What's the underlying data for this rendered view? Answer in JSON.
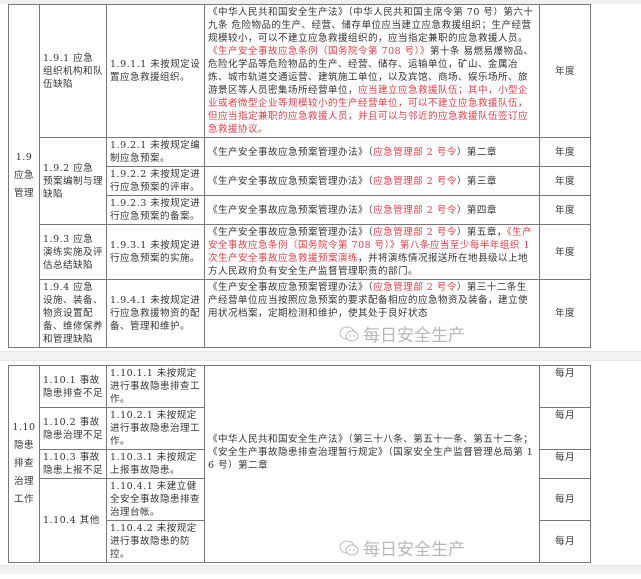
{
  "table1": {
    "category": "1.9 应急管理",
    "rows": [
      {
        "sub": "1.9.1 应急组织机构和队伍缺陷",
        "item": "1.9.1.1 未按规定设置应急救援组织。",
        "basis": [
          {
            "t": "《中华人民共和国安全生产法》（中华人民共和国主席令第 70 号）第六十九条 危险物品的生产、经营、储存单位应当建立应急救援组织；生产经营规模较小，可以不建立应急救援组织的，应当指定兼职的应急救援人员。",
            "red": false
          },
          {
            "t": "《生产安全事故应急条例（国务院令第 708 号）》",
            "red": true
          },
          {
            "t": "第十条 易燃易爆物品、危险化学品等危险物品的生产、经营、储存、运输单位，矿山、金属冶炼、城市轨道交通运营、建筑施工单位，以及宾馆、商场、娱乐场所、旅游景区等人员密集场所经营单位，",
            "red": false
          },
          {
            "t": "应当建立应急救援队伍；其中，小型企业或者微型企业等规模较小的生产经营单位，可以不建立应急救援队伍，但应当指定兼职的应急救援人员，并且可以与邻近的应急救援队伍签订应急救援协议。",
            "red": true
          }
        ],
        "freq": "年度"
      },
      {
        "sub": "1.9.2 应急预案编制与理缺陷",
        "item": "1.9.2.1 未按规定编制应急预案。",
        "basis": [
          {
            "t": "《生产安全事故应急预案管理办法》（",
            "red": false
          },
          {
            "t": "应急管理部 2 号令",
            "red": true
          },
          {
            "t": "）第二章",
            "red": false
          }
        ],
        "freq": "年度"
      },
      {
        "item": "1.9.2.2 未按规定进行应急预案的评审。",
        "basis": [
          {
            "t": "《生产安全事故应急预案管理办法》（",
            "red": false
          },
          {
            "t": "应急管理部 2 号令",
            "red": true
          },
          {
            "t": "）第三章",
            "red": false
          }
        ],
        "freq": "年度"
      },
      {
        "item": "1.9.2.3 未按规定进行应急预案的备案。",
        "basis": [
          {
            "t": "《生产安全事故应急预案管理办法》（",
            "red": false
          },
          {
            "t": "应急管理部 2 号令",
            "red": true
          },
          {
            "t": "）第四章",
            "red": false
          }
        ],
        "freq": "年度"
      },
      {
        "sub": "1.9.3 应急演练实施及评估总结缺陷",
        "item": "1.9.3.1 未按规定进行应急预案的实施。",
        "basis": [
          {
            "t": "《生产安全事故应急预案管理办法》（",
            "red": false
          },
          {
            "t": "应急管理部 2 号令",
            "red": true
          },
          {
            "t": "）第五章，",
            "red": false
          },
          {
            "t": "《生产安全事故应急条例（国务院令第 708 号）》第八条应当至少每半年组织 1 次生产安全事故应急救援预案演练",
            "red": true
          },
          {
            "t": "，并将演练情况报送所在地县级以上地方人民政府负有安全生产监督管理职责的部门。",
            "red": false
          }
        ],
        "freq": "年度"
      },
      {
        "sub": "1.9.4 应急设施、装备、物资设置配备、维修保养和管理缺陷",
        "item": "1.9.4.1 未按规定进行应急救援物资的配备、管理和维护。",
        "basis": [
          {
            "t": "《生产安全事故应急预案管理办法》（",
            "red": false
          },
          {
            "t": "应急管理部 2 号令",
            "red": true
          },
          {
            "t": "）第三十二条生产经营单位应当按照应急预案的要求配备相应的应急物资及装备，建立使用状况档案，定期检测和维护，使其处于良好状态",
            "red": false
          }
        ],
        "freq": "年度"
      }
    ]
  },
  "table2": {
    "category": "1.10 隐患排查治理工作",
    "basis": "《中华人民共和国安全生产法》（第三十八条、第五十一条、第五十二条；《安全生产事故隐患排查治理暂行规定》（国家安全生产监督管理总局第 16 号）第二章",
    "rows": [
      {
        "sub": "1.10.1 事故隐患排查不足",
        "item": "1.10.1.1 未按规定进行事故隐患排查工作。",
        "freq": "每月"
      },
      {
        "sub": "1.10.2 事故隐患治理不足",
        "item": "1.10.2.1 未按规定进行事故隐患治理工作。",
        "freq": "每月"
      },
      {
        "sub": "1.10.3 事故隐患上报不足",
        "item": "1.10.3.1 未按规定上报事故隐患。",
        "freq": "每月"
      },
      {
        "sub": "1.10.4 其他",
        "item": "1.10.4.1 未建立健全安全事故隐患排查治理台帐。",
        "freq": "每月"
      },
      {
        "item": "1.10.4.2 未按规定进行事故隐患的防控。",
        "freq": "每月"
      }
    ]
  },
  "watermark": {
    "text": "每日安全生产",
    "icon": "wechat-icon"
  },
  "colors": {
    "red": "#e0404a",
    "border": "#777777"
  }
}
